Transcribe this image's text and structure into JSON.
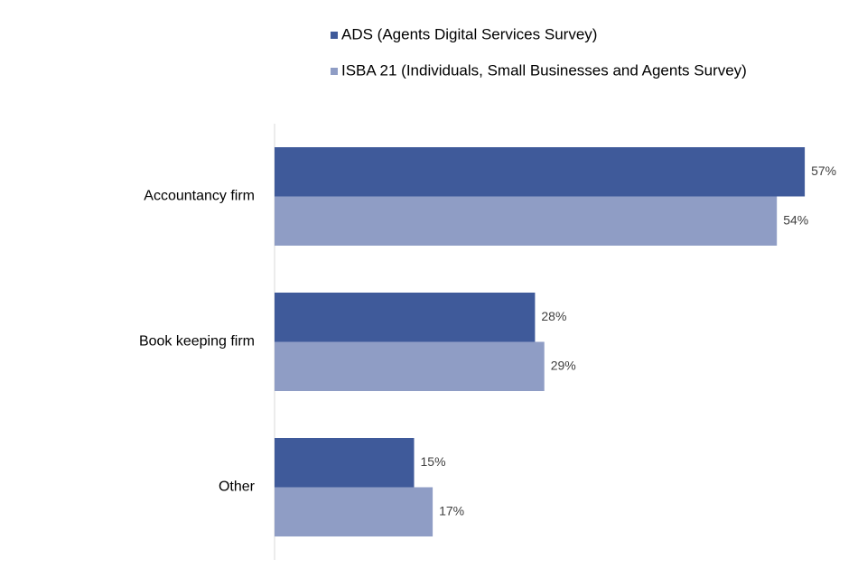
{
  "chart_data": {
    "type": "hbar",
    "categories": [
      "Accountancy firm",
      "Book keeping firm",
      "Other"
    ],
    "series": [
      {
        "name": "ADS (Agents Digital Services Survey)",
        "color": "#3f5a9a",
        "values": [
          57,
          28,
          15
        ],
        "value_labels": [
          "57%",
          "28%",
          "15%"
        ]
      },
      {
        "name": "ISBA 21 (Individuals, Small Businesses and Agents Survey)",
        "color": "#8f9dc5",
        "values": [
          54,
          29,
          17
        ],
        "value_labels": [
          "54%",
          "29%",
          "17%"
        ]
      }
    ],
    "xlim": [
      0,
      60
    ],
    "legend": "top"
  }
}
